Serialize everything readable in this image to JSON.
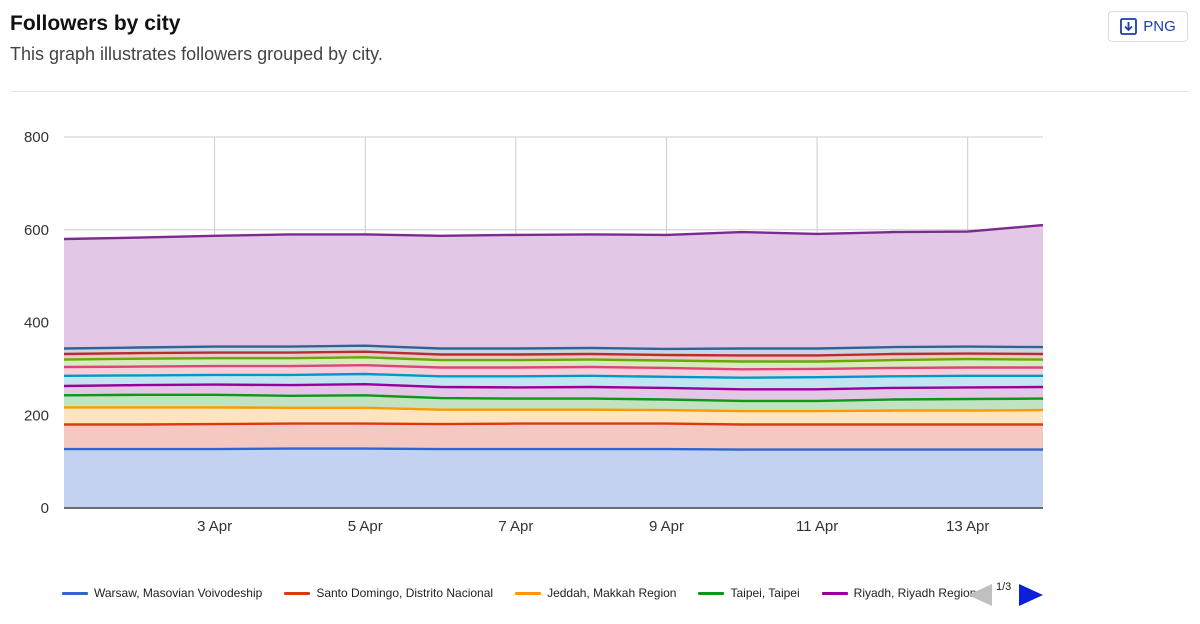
{
  "header": {
    "title": "Followers by city",
    "subtitle": "This graph illustrates followers grouped by city.",
    "export_label": "PNG",
    "export_icon": "download-icon"
  },
  "pager": {
    "text": "1/3",
    "prev_icon": "triangle-left-icon",
    "next_icon": "triangle-right-icon"
  },
  "chart_data": {
    "type": "area",
    "stacked": true,
    "title": "",
    "xlabel": "",
    "ylabel": "",
    "ylim": [
      0,
      800
    ],
    "y_ticks": [
      "0",
      "200",
      "400",
      "600",
      "800"
    ],
    "x": [
      "1 Apr",
      "2 Apr",
      "3 Apr",
      "4 Apr",
      "5 Apr",
      "6 Apr",
      "7 Apr",
      "8 Apr",
      "9 Apr",
      "10 Apr",
      "11 Apr",
      "12 Apr",
      "13 Apr",
      "14 Apr"
    ],
    "x_tick_labels": [
      "3 Apr",
      "5 Apr",
      "7 Apr",
      "9 Apr",
      "11 Apr",
      "13 Apr"
    ],
    "grid": true,
    "legend_position": "bottom",
    "series": [
      {
        "name": "Warsaw, Masovian Voivodeship",
        "color": "#3366cc",
        "fill": "#c4d2f2",
        "legend": true,
        "values": [
          127,
          127,
          127,
          128,
          128,
          127,
          127,
          127,
          127,
          126,
          126,
          126,
          126,
          126
        ]
      },
      {
        "name": "Santo Domingo, Distrito Nacional",
        "color": "#dc3912",
        "fill": "#f5c9c1",
        "legend": true,
        "values": [
          53,
          53,
          54,
          54,
          54,
          54,
          55,
          55,
          55,
          54,
          54,
          54,
          54,
          54
        ]
      },
      {
        "name": "Jeddah, Makkah Region",
        "color": "#ff9900",
        "fill": "#ffe5bf",
        "legend": true,
        "values": [
          37,
          37,
          36,
          34,
          34,
          31,
          30,
          30,
          29,
          29,
          29,
          30,
          30,
          31
        ]
      },
      {
        "name": "Taipei, Taipei",
        "color": "#109618",
        "fill": "#c1e3c2",
        "legend": true,
        "values": [
          26,
          27,
          27,
          26,
          27,
          25,
          24,
          24,
          23,
          22,
          22,
          24,
          25,
          25
        ]
      },
      {
        "name": "Riyadh, Riyadh Region",
        "color": "#990099",
        "fill": "#e3c7e6",
        "legend": true,
        "values": [
          20,
          21,
          22,
          23,
          24,
          24,
          24,
          25,
          25,
          25,
          25,
          25,
          25,
          25
        ]
      },
      {
        "name": "",
        "color": "#0099c6",
        "fill": "#c1e6f1",
        "legend": false,
        "values": [
          22,
          21,
          21,
          22,
          22,
          23,
          24,
          24,
          24,
          25,
          26,
          25,
          25,
          24
        ]
      },
      {
        "name": "",
        "color": "#dd4477",
        "fill": "#f5d0dc",
        "legend": false,
        "values": [
          19,
          19,
          19,
          19,
          19,
          19,
          19,
          19,
          19,
          18,
          18,
          18,
          18,
          18
        ]
      },
      {
        "name": "",
        "color": "#66aa00",
        "fill": "#d8eabf",
        "legend": false,
        "values": [
          16,
          17,
          17,
          17,
          17,
          16,
          16,
          16,
          16,
          17,
          16,
          17,
          18,
          17
        ]
      },
      {
        "name": "",
        "color": "#b82e2e",
        "fill": "#edcaca",
        "legend": false,
        "values": [
          12,
          12,
          12,
          12,
          12,
          12,
          12,
          12,
          12,
          13,
          13,
          13,
          12,
          12
        ]
      },
      {
        "name": "",
        "color": "#316395",
        "fill": "#cad8e4",
        "legend": false,
        "values": [
          12,
          12,
          13,
          13,
          13,
          13,
          13,
          13,
          13,
          15,
          15,
          15,
          15,
          15
        ]
      },
      {
        "name": "",
        "color": "#7b2a8e",
        "fill": "#e2c8e6",
        "legend": false,
        "values": [
          236,
          237,
          239,
          242,
          240,
          243,
          245,
          245,
          246,
          251,
          247,
          248,
          248,
          263
        ]
      }
    ]
  }
}
